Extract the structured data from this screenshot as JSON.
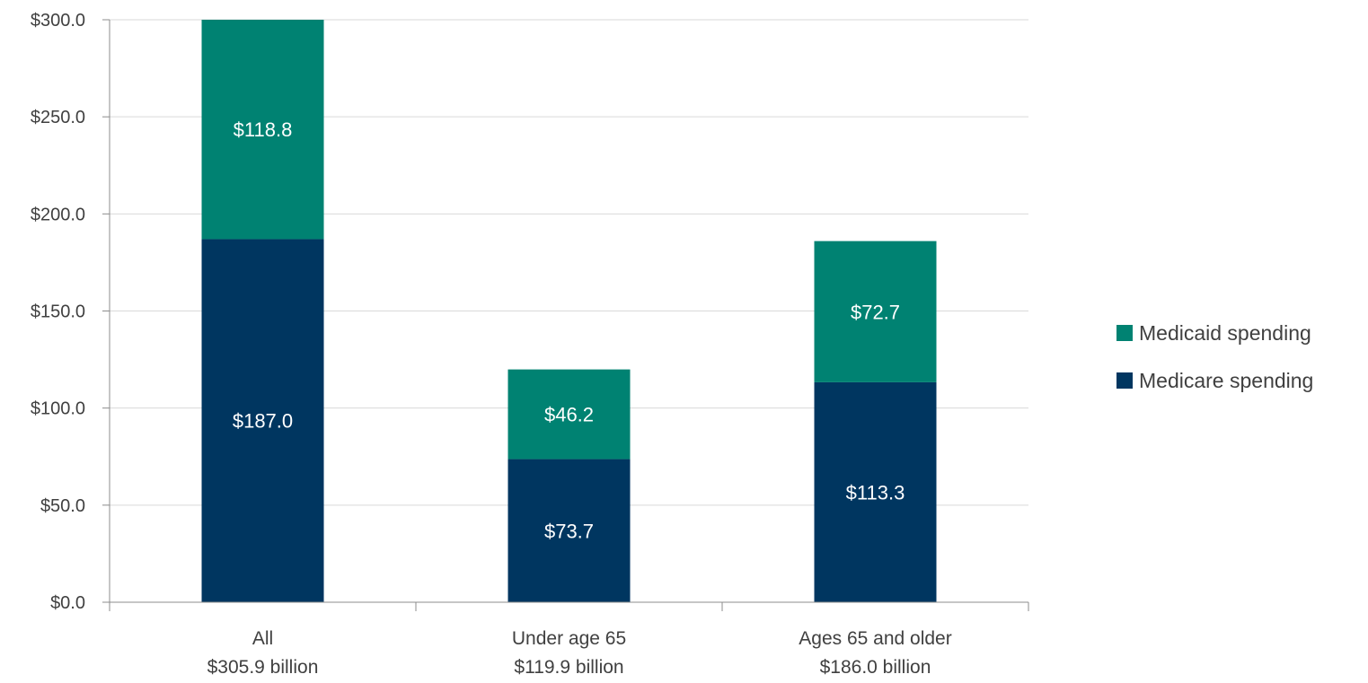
{
  "chart_data": {
    "type": "bar",
    "stacked": true,
    "categories": [
      "All",
      "Under age 65",
      "Ages 65 and older"
    ],
    "category_totals": [
      "$305.9 billion",
      "$119.9 billion",
      "$186.0 billion"
    ],
    "series": [
      {
        "name": "Medicare spending",
        "values": [
          187.0,
          73.7,
          113.3
        ],
        "labels": [
          "$187.0",
          "$73.7",
          "$113.3"
        ],
        "color": "#003660"
      },
      {
        "name": "Medicaid spending",
        "values": [
          118.8,
          46.2,
          72.7
        ],
        "labels": [
          "$118.8",
          "$46.2",
          "$72.7"
        ],
        "color": "#008272"
      }
    ],
    "ylim": [
      0,
      300
    ],
    "yticks": [
      0,
      50,
      100,
      150,
      200,
      250,
      300
    ],
    "ytick_labels": [
      "$0.0",
      "$50.0",
      "$100.0",
      "$150.0",
      "$200.0",
      "$250.0",
      "$300.0"
    ],
    "grid": true,
    "legend": {
      "position": "right",
      "entries": [
        "Medicaid spending",
        "Medicare spending"
      ]
    },
    "colors": {
      "gridline": "#d9d9d9",
      "axis": "#8c8c8c",
      "text": "#404040",
      "data_label": "#ffffff"
    }
  }
}
